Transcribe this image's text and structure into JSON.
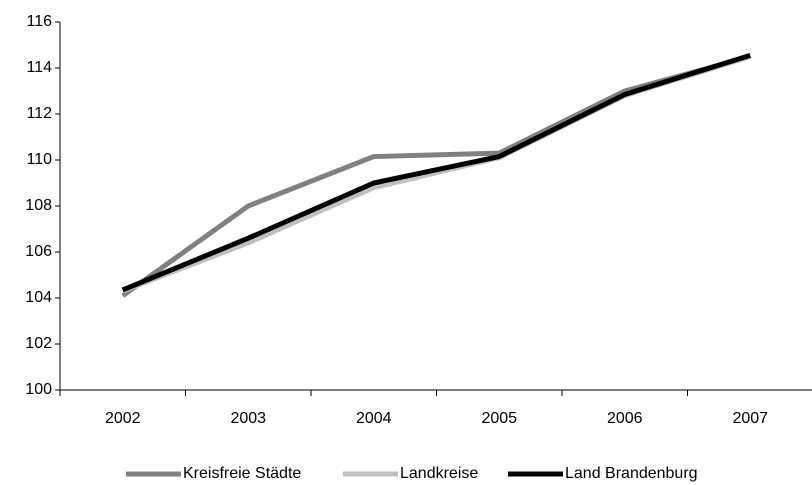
{
  "chart_data": {
    "type": "line",
    "categories": [
      "2002",
      "2003",
      "2004",
      "2005",
      "2006",
      "2007"
    ],
    "series": [
      {
        "name": "Kreisfreie Städte",
        "color": "#808080",
        "values": [
          104.1,
          108.0,
          110.15,
          110.3,
          113.0,
          114.5
        ]
      },
      {
        "name": "Landkreise",
        "color": "#c0c0c0",
        "values": [
          104.3,
          106.4,
          108.8,
          110.1,
          112.8,
          114.5
        ]
      },
      {
        "name": "Land Brandenburg",
        "color": "#000000",
        "values": [
          104.35,
          106.6,
          109.0,
          110.15,
          112.85,
          114.55
        ]
      }
    ],
    "ylim": [
      100,
      116
    ],
    "yticks": [
      100,
      102,
      104,
      106,
      108,
      110,
      112,
      114,
      116
    ],
    "grid": false,
    "legend": "bottom"
  }
}
